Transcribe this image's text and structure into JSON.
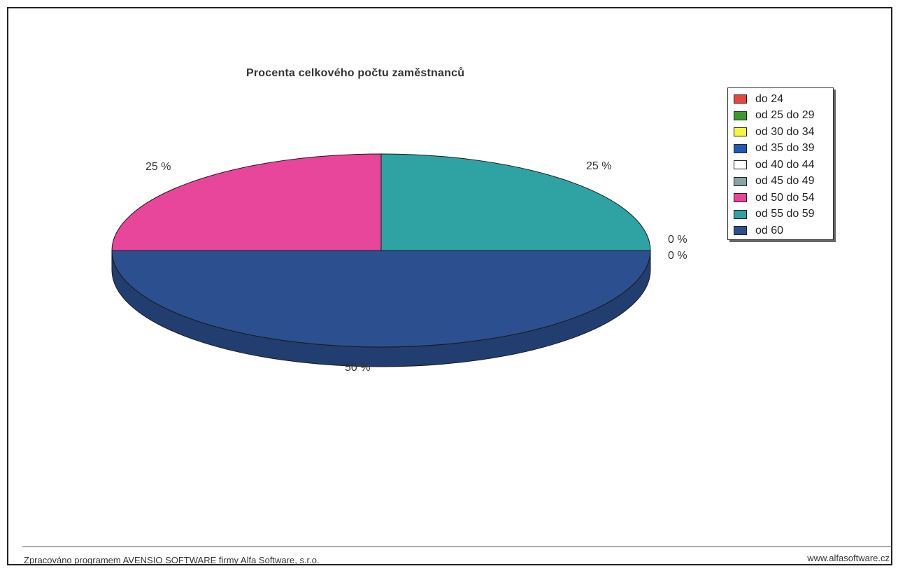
{
  "chart_data": {
    "type": "pie",
    "title": "Procenta celkového počtu zaměstnanců",
    "slices": [
      {
        "name": "do 24",
        "value": 0,
        "color": "#e8453c"
      },
      {
        "name": "od 25 do 29",
        "value": 0,
        "color": "#3c9a2e"
      },
      {
        "name": "od 30 do 34",
        "value": 0,
        "color": "#f5f542"
      },
      {
        "name": "od 35 do 39",
        "value": 0,
        "color": "#1e5bb8"
      },
      {
        "name": "od 40 do 44",
        "value": 0,
        "color": "#ffffff"
      },
      {
        "name": "od 45 do 49",
        "value": 0,
        "color": "#8aa3a6"
      },
      {
        "name": "od 50 do 54",
        "value": 25,
        "color": "#e8469b"
      },
      {
        "name": "od 55 do 59",
        "value": 25,
        "color": "#2fa3a3"
      },
      {
        "name": "od 60",
        "value": 50,
        "color": "#2c4f8f"
      }
    ],
    "data_labels": [
      {
        "series": "od 55 do 59",
        "text": "25 %"
      },
      {
        "series": "od 50 do 54",
        "text": "25 %"
      },
      {
        "series": "zero-1",
        "text": "0 %"
      },
      {
        "series": "zero-2",
        "text": "0 %"
      },
      {
        "series": "od 60",
        "text": "50 %"
      }
    ],
    "legend_position": "right",
    "style": "3d-pie"
  },
  "footer": {
    "left": "Zpracováno programem AVENSIO SOFTWARE firmy Alfa Software, s.r.o.",
    "right": "www.alfasoftware.cz"
  }
}
